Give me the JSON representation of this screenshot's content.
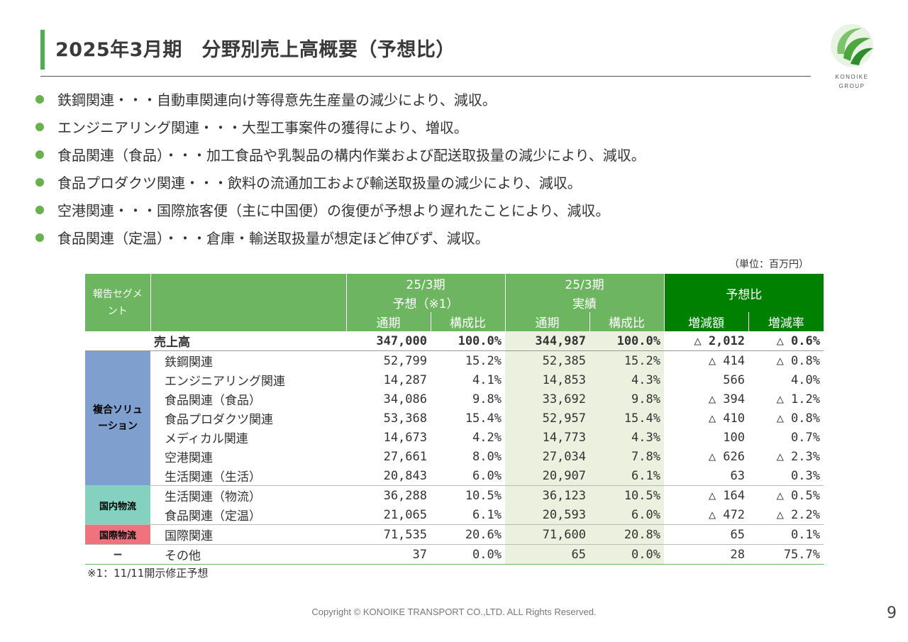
{
  "title": "2025年3月期　分野別売上高概要（予想比）",
  "logo": {
    "text1": "KONOIKE",
    "text2": "GROUP",
    "icon": "konoike-leaf-logo"
  },
  "bullets": [
    "鉄鋼関連・・・自動車関連向け等得意先生産量の減少により、減収。",
    "エンジニアリング関連・・・大型工事案件の獲得により、増収。",
    "食品関連（食品）・・・加工食品や乳製品の構内作業および配送取扱量の減少により、減収。",
    "食品プロダクツ関連・・・飲料の流通加工および輸送取扱量の減少により、減収。",
    "空港関連・・・国際旅客便（主に中国便）の復便が予想より遅れたことにより、減収。",
    "食品関連（定温）・・・倉庫・輸送取扱量が想定ほど伸びず、減収。"
  ],
  "unit": "（単位：百万円）",
  "table": {
    "header": {
      "segment": "報告セグメント",
      "forecast_period": "25/3期",
      "forecast_label": "予想（※1）",
      "actual_period": "25/3期",
      "actual_label": "実績",
      "comparison": "予想比",
      "full_year": "通期",
      "ratio": "構成比",
      "diff_amount": "増減額",
      "diff_rate": "増減率"
    },
    "total": {
      "label": "売上高",
      "forecast": "347,000",
      "forecast_ratio": "100.0%",
      "actual": "344,987",
      "actual_ratio": "100.0%",
      "diff": "△ 2,012",
      "rate": "△ 0.6%"
    },
    "segments": {
      "fukugo": "複合ソリューション",
      "kokunai": "国内物流",
      "kokusai": "国際物流",
      "other": "−"
    },
    "rows": [
      {
        "label": "鉄鋼関連",
        "forecast": "52,799",
        "forecast_ratio": "15.2%",
        "actual": "52,385",
        "actual_ratio": "15.2%",
        "diff": "△ 414",
        "rate": "△ 0.8%"
      },
      {
        "label": "エンジニアリング関連",
        "forecast": "14,287",
        "forecast_ratio": "4.1%",
        "actual": "14,853",
        "actual_ratio": "4.3%",
        "diff": "566",
        "rate": "4.0%"
      },
      {
        "label": "食品関連（食品）",
        "forecast": "34,086",
        "forecast_ratio": "9.8%",
        "actual": "33,692",
        "actual_ratio": "9.8%",
        "diff": "△ 394",
        "rate": "△ 1.2%"
      },
      {
        "label": "食品プロダクツ関連",
        "forecast": "53,368",
        "forecast_ratio": "15.4%",
        "actual": "52,957",
        "actual_ratio": "15.4%",
        "diff": "△ 410",
        "rate": "△ 0.8%"
      },
      {
        "label": "メディカル関連",
        "forecast": "14,673",
        "forecast_ratio": "4.2%",
        "actual": "14,773",
        "actual_ratio": "4.3%",
        "diff": "100",
        "rate": "0.7%"
      },
      {
        "label": "空港関連",
        "forecast": "27,661",
        "forecast_ratio": "8.0%",
        "actual": "27,034",
        "actual_ratio": "7.8%",
        "diff": "△ 626",
        "rate": "△ 2.3%"
      },
      {
        "label": "生活関連（生活）",
        "forecast": "20,843",
        "forecast_ratio": "6.0%",
        "actual": "20,907",
        "actual_ratio": "6.1%",
        "diff": "63",
        "rate": "0.3%"
      },
      {
        "label": "生活関連（物流）",
        "forecast": "36,288",
        "forecast_ratio": "10.5%",
        "actual": "36,123",
        "actual_ratio": "10.5%",
        "diff": "△ 164",
        "rate": "△ 0.5%"
      },
      {
        "label": "食品関連（定温）",
        "forecast": "21,065",
        "forecast_ratio": "6.1%",
        "actual": "20,593",
        "actual_ratio": "6.0%",
        "diff": "△ 472",
        "rate": "△ 2.2%"
      },
      {
        "label": "国際関連",
        "forecast": "71,535",
        "forecast_ratio": "20.6%",
        "actual": "71,600",
        "actual_ratio": "20.8%",
        "diff": "65",
        "rate": "0.1%"
      },
      {
        "label": "その他",
        "forecast": "37",
        "forecast_ratio": "0.0%",
        "actual": "65",
        "actual_ratio": "0.0%",
        "diff": "28",
        "rate": "75.7%"
      }
    ]
  },
  "footnote": "※1：11/11開示修正予想",
  "copyright": "Copyright © KONOIKE TRANSPORT CO.,LTD.  ALL Rights Reserved.",
  "page_number": "9",
  "colors": {
    "accent_green": "#4caf50",
    "header_green": "#6db560",
    "header_dark_green": "#008000",
    "segment_blue": "#7fa0cf",
    "segment_teal": "#85d1bf",
    "segment_pink": "#f1727f",
    "actual_shade": "#ebf1de"
  }
}
